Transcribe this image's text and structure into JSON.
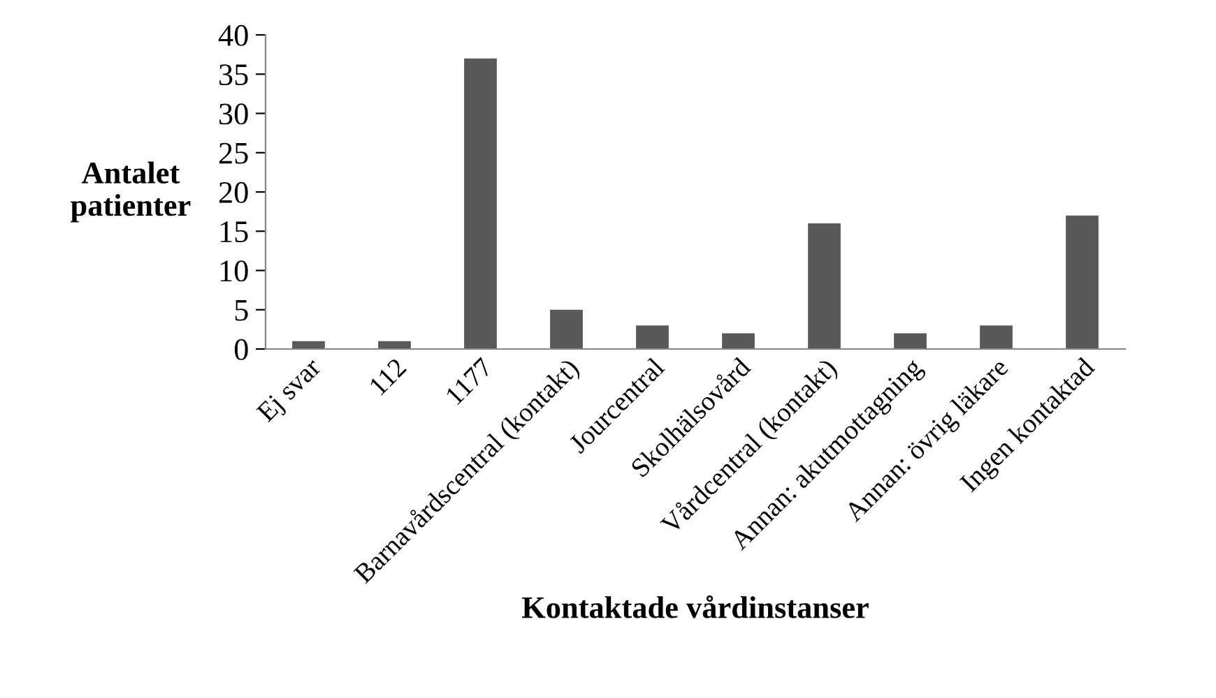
{
  "chart_data": {
    "type": "bar",
    "xlabel": "Kontaktade vårdinstanser",
    "ylabel": "Antalet\npatienter",
    "categories": [
      "Ej svar",
      "112",
      "1177",
      "Barnavårdscentral (kontakt)",
      "Jourcentral",
      "Skolhälsovård",
      "Vårdcentral (kontakt)",
      "Annan: akutmottagning",
      "Annan: övrig läkare",
      "Ingen kontaktad"
    ],
    "values": [
      1,
      1,
      37,
      5,
      3,
      2,
      16,
      2,
      3,
      17
    ],
    "color": "#595959",
    "ylim": [
      0,
      40
    ],
    "yticks": [
      0,
      5,
      10,
      15,
      20,
      25,
      30,
      35,
      40
    ],
    "grid": false,
    "legend": false
  }
}
